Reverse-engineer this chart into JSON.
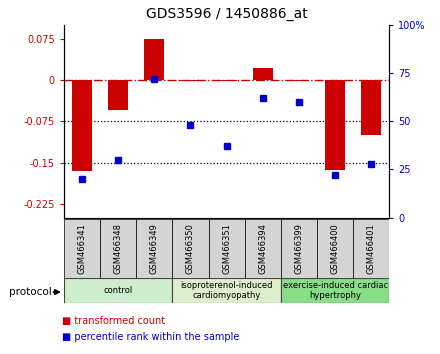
{
  "title": "GDS3596 / 1450886_at",
  "samples": [
    "GSM466341",
    "GSM466348",
    "GSM466349",
    "GSM466350",
    "GSM466351",
    "GSM466394",
    "GSM466399",
    "GSM466400",
    "GSM466401"
  ],
  "red_values": [
    -0.165,
    -0.055,
    0.075,
    -0.002,
    -0.002,
    0.022,
    -0.002,
    -0.163,
    -0.1
  ],
  "blue_values": [
    20,
    30,
    72,
    48,
    37,
    62,
    60,
    22,
    28
  ],
  "groups": [
    {
      "label": "control",
      "start": 0,
      "end": 3,
      "color": "#cceecc"
    },
    {
      "label": "isoproterenol-induced\ncardiomyopathy",
      "start": 3,
      "end": 6,
      "color": "#ddeecc"
    },
    {
      "label": "exercise-induced cardiac\nhypertrophy",
      "start": 6,
      "end": 9,
      "color": "#88dd88"
    }
  ],
  "ylim_left": [
    -0.25,
    0.1
  ],
  "ylim_right": [
    0,
    100
  ],
  "left_yticks": [
    0.075,
    0.0,
    -0.075,
    -0.15,
    -0.225
  ],
  "left_ytick_labels": [
    "0.075",
    "0",
    "-0.075",
    "-0.15",
    "-0.225"
  ],
  "right_yticks": [
    0,
    25,
    50,
    75,
    100
  ],
  "right_ytick_labels": [
    "0",
    "25",
    "50",
    "75",
    "100%"
  ],
  "red_color": "#cc0000",
  "blue_color": "#0000cc",
  "dotted_lines": [
    -0.075,
    -0.15
  ],
  "legend_items": [
    {
      "color": "#cc0000",
      "label": "transformed count"
    },
    {
      "color": "#0000cc",
      "label": "percentile rank within the sample"
    }
  ],
  "protocol_label": "protocol",
  "bar_width": 0.55
}
